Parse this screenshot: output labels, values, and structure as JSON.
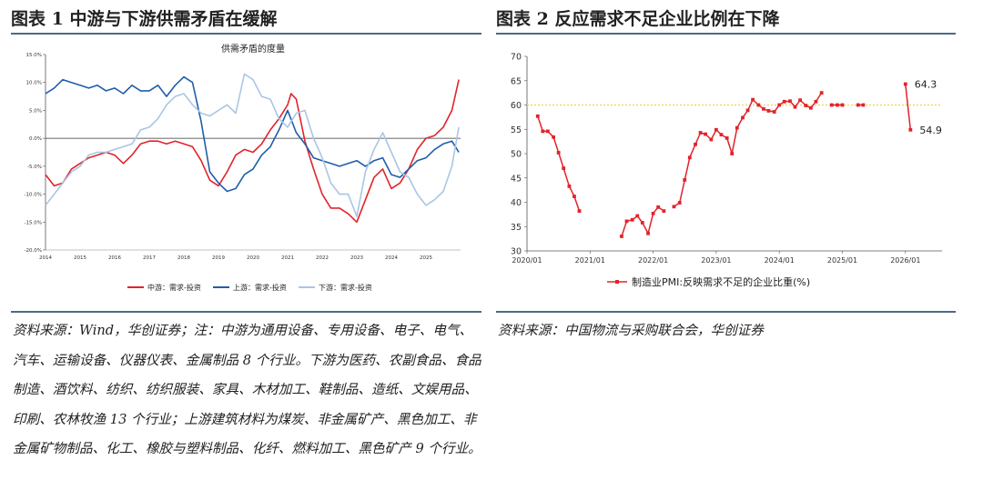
{
  "figures": [
    {
      "title": "图表 1   中游与下游供需矛盾在缓解",
      "source": "资料来源：Wind，华创证券；注：中游为通用设备、专用设备、电子、电气、汽车、运输设备、仪器仪表、金属制品 8 个行业。下游为医药、农副食品、食品制造、酒饮料、纺织、纺织服装、家具、木材加工、鞋制品、造纸、文娱用品、印刷、农林牧渔 13 个行业；上游建筑材料为煤炭、非金属矿产、黑色加工、非金属矿物制品、化工、橡胶与塑料制品、化纤、燃料加工、黑色矿产 9 个行业。"
    },
    {
      "title": "图表 2   反应需求不足企业比例在下降",
      "source": "资料来源：中国物流与采购联合会，华创证券"
    }
  ],
  "colors": {
    "midstream": "#e2232a",
    "upstream": "#1f5ea8",
    "downstream": "#a9c6e4",
    "rule": "#4a6a88",
    "refline": "#f5cf5a"
  },
  "chart_data": [
    {
      "type": "line",
      "title": "供需矛盾的度量",
      "xlabel": "",
      "ylabel": "",
      "x_ticks": [
        "2014",
        "2015",
        "2016",
        "2017",
        "2018",
        "2019",
        "2020",
        "2021",
        "2022",
        "2023",
        "2024",
        "2025"
      ],
      "y_ticks": [
        "15.0%",
        "10.0%",
        "5.0%",
        "0.0%",
        "-5.0%",
        "-10.0%",
        "-15.0%",
        "-20.0%"
      ],
      "ylim": [
        -20,
        15
      ],
      "xlim": [
        2014,
        2026
      ],
      "grid": false,
      "zero_line": true,
      "legend_position": "bottom",
      "series": [
        {
          "name": "中游：需求-投资",
          "x": [
            2014.0,
            2014.25,
            2014.5,
            2014.75,
            2015.0,
            2015.25,
            2015.5,
            2015.75,
            2016.0,
            2016.25,
            2016.5,
            2016.75,
            2017.0,
            2017.25,
            2017.5,
            2017.75,
            2018.0,
            2018.25,
            2018.5,
            2018.75,
            2019.0,
            2019.25,
            2019.5,
            2019.75,
            2020.0,
            2020.25,
            2020.5,
            2020.75,
            2021.0,
            2021.1,
            2021.25,
            2021.5,
            2021.75,
            2022.0,
            2022.25,
            2022.5,
            2022.75,
            2023.0,
            2023.25,
            2023.5,
            2023.75,
            2024.0,
            2024.25,
            2024.5,
            2024.75,
            2025.0,
            2025.25,
            2025.5,
            2025.75,
            2025.95
          ],
          "values": [
            -6.5,
            -8.5,
            -8.0,
            -5.5,
            -4.5,
            -3.5,
            -3.0,
            -2.5,
            -3.0,
            -4.5,
            -3.0,
            -1.0,
            -0.5,
            -0.5,
            -1.0,
            -0.5,
            -1.0,
            -1.5,
            -4.0,
            -7.5,
            -8.5,
            -6.0,
            -3.0,
            -2.0,
            -2.5,
            -1.0,
            1.5,
            3.5,
            6.0,
            8.0,
            7.0,
            -0.5,
            -5.5,
            -10.0,
            -12.5,
            -12.5,
            -13.5,
            -15.0,
            -11.0,
            -7.0,
            -5.5,
            -9.0,
            -8.0,
            -5.5,
            -2.0,
            0.0,
            0.5,
            2.0,
            5.0,
            10.5
          ]
        },
        {
          "name": "上游：需求-投资",
          "x": [
            2014.0,
            2014.25,
            2014.5,
            2014.75,
            2015.0,
            2015.25,
            2015.5,
            2015.75,
            2016.0,
            2016.25,
            2016.5,
            2016.75,
            2017.0,
            2017.25,
            2017.5,
            2017.75,
            2018.0,
            2018.25,
            2018.5,
            2018.75,
            2019.0,
            2019.25,
            2019.5,
            2019.75,
            2020.0,
            2020.25,
            2020.5,
            2020.75,
            2021.0,
            2021.25,
            2021.5,
            2021.75,
            2022.0,
            2022.25,
            2022.5,
            2022.75,
            2023.0,
            2023.25,
            2023.5,
            2023.75,
            2024.0,
            2024.25,
            2024.5,
            2024.75,
            2025.0,
            2025.25,
            2025.5,
            2025.75,
            2025.95
          ],
          "values": [
            8.0,
            9.0,
            10.5,
            10.0,
            9.5,
            9.0,
            9.5,
            8.5,
            9.0,
            8.0,
            9.5,
            8.5,
            8.5,
            9.5,
            7.5,
            9.5,
            11.0,
            10.0,
            3.0,
            -6.0,
            -8.0,
            -9.5,
            -9.0,
            -6.5,
            -5.5,
            -3.0,
            -1.5,
            1.5,
            5.0,
            1.0,
            -1.0,
            -3.5,
            -4.0,
            -4.5,
            -5.0,
            -4.5,
            -4.0,
            -5.0,
            -4.0,
            -3.5,
            -6.5,
            -7.0,
            -5.5,
            -4.0,
            -3.5,
            -2.0,
            -1.0,
            -0.5,
            -2.5
          ]
        },
        {
          "name": "下游：需求-投资",
          "x": [
            2014.0,
            2014.25,
            2014.5,
            2014.75,
            2015.0,
            2015.25,
            2015.5,
            2015.75,
            2016.0,
            2016.25,
            2016.5,
            2016.75,
            2017.0,
            2017.25,
            2017.5,
            2017.75,
            2018.0,
            2018.25,
            2018.5,
            2018.75,
            2019.0,
            2019.25,
            2019.5,
            2019.75,
            2020.0,
            2020.25,
            2020.5,
            2020.75,
            2021.0,
            2021.25,
            2021.5,
            2021.75,
            2022.0,
            2022.25,
            2022.5,
            2022.75,
            2023.0,
            2023.25,
            2023.5,
            2023.75,
            2024.0,
            2024.25,
            2024.5,
            2024.75,
            2025.0,
            2025.25,
            2025.5,
            2025.75,
            2025.95
          ],
          "values": [
            -12.0,
            -10.0,
            -8.0,
            -6.0,
            -5.0,
            -3.0,
            -2.5,
            -2.5,
            -2.0,
            -1.5,
            -1.0,
            1.5,
            2.0,
            3.5,
            6.0,
            7.5,
            8.0,
            6.0,
            4.5,
            4.0,
            5.0,
            6.0,
            4.5,
            11.5,
            10.5,
            7.5,
            7.0,
            3.5,
            2.0,
            4.5,
            5.0,
            0.0,
            -3.5,
            -8.0,
            -10.0,
            -10.0,
            -14.0,
            -6.0,
            -2.0,
            1.0,
            -2.5,
            -6.0,
            -7.0,
            -10.0,
            -12.0,
            -11.0,
            -9.5,
            -5.0,
            2.0
          ]
        }
      ]
    },
    {
      "type": "line",
      "title": "",
      "xlabel": "",
      "ylabel": "",
      "x_ticks": [
        "2020/01",
        "2021/01",
        "2022/01",
        "2023/01",
        "2024/01",
        "2025/01",
        "2026/01"
      ],
      "y_ticks": [
        "30",
        "35",
        "40",
        "45",
        "50",
        "55",
        "60",
        "65",
        "70"
      ],
      "ylim": [
        30,
        70
      ],
      "xlim": [
        2020.0,
        2026.58
      ],
      "grid": false,
      "reference_line": {
        "y": 60,
        "color": "#f5cf5a",
        "style": "dotted"
      },
      "legend_position": "bottom",
      "annotations": [
        {
          "x": 2026.0,
          "y": 64.3,
          "text": "64.3"
        },
        {
          "x": 2026.08,
          "y": 54.9,
          "text": "54.9"
        }
      ],
      "series": [
        {
          "name": "制造业PMI:反映需求不足的企业比重(%)",
          "x": [
            2020.17,
            2020.25,
            2020.33,
            2020.42,
            2020.5,
            2020.58,
            2020.67,
            2020.75,
            2020.83,
            2020.92,
            2021.0,
            2021.5,
            2021.58,
            2021.67,
            2021.75,
            2021.83,
            2021.92,
            2022.0,
            2022.08,
            2022.17,
            2022.25,
            2022.33,
            2022.42,
            2022.5,
            2022.58,
            2022.67,
            2022.75,
            2022.83,
            2022.92,
            2023.0,
            2023.08,
            2023.17,
            2023.25,
            2023.33,
            2023.42,
            2023.5,
            2023.58,
            2023.67,
            2023.75,
            2023.83,
            2023.92,
            2024.0,
            2024.08,
            2024.17,
            2024.25,
            2024.33,
            2024.42,
            2024.5,
            2024.58,
            2024.67,
            2024.75,
            2024.83,
            2024.92,
            2025.0,
            2025.08,
            2025.17,
            2025.25,
            2025.33,
            2025.42,
            2025.5,
            2025.58,
            2025.67,
            2025.75,
            2025.83,
            2025.92,
            2026.0,
            2026.08
          ],
          "values": [
            57.7,
            54.6,
            54.6,
            53.4,
            50.2,
            47.0,
            43.3,
            41.2,
            38.2,
            null,
            null,
            33.0,
            36.1,
            36.4,
            37.2,
            35.8,
            33.6,
            37.7,
            39.0,
            38.2,
            null,
            39.1,
            39.9,
            44.6,
            49.2,
            51.9,
            54.3,
            54.0,
            52.9,
            54.9,
            53.9,
            53.2,
            50.0,
            55.3,
            57.4,
            58.9,
            61.1,
            60.0,
            59.2,
            58.8,
            58.6,
            60.0,
            60.7,
            60.8,
            59.6,
            61.0,
            59.9,
            59.4,
            60.7,
            62.5,
            null,
            60.0,
            60.0,
            60.0,
            null,
            null,
            60.0,
            60.0,
            null,
            null,
            null,
            null,
            null,
            null,
            null,
            64.3,
            54.9
          ]
        }
      ]
    }
  ]
}
